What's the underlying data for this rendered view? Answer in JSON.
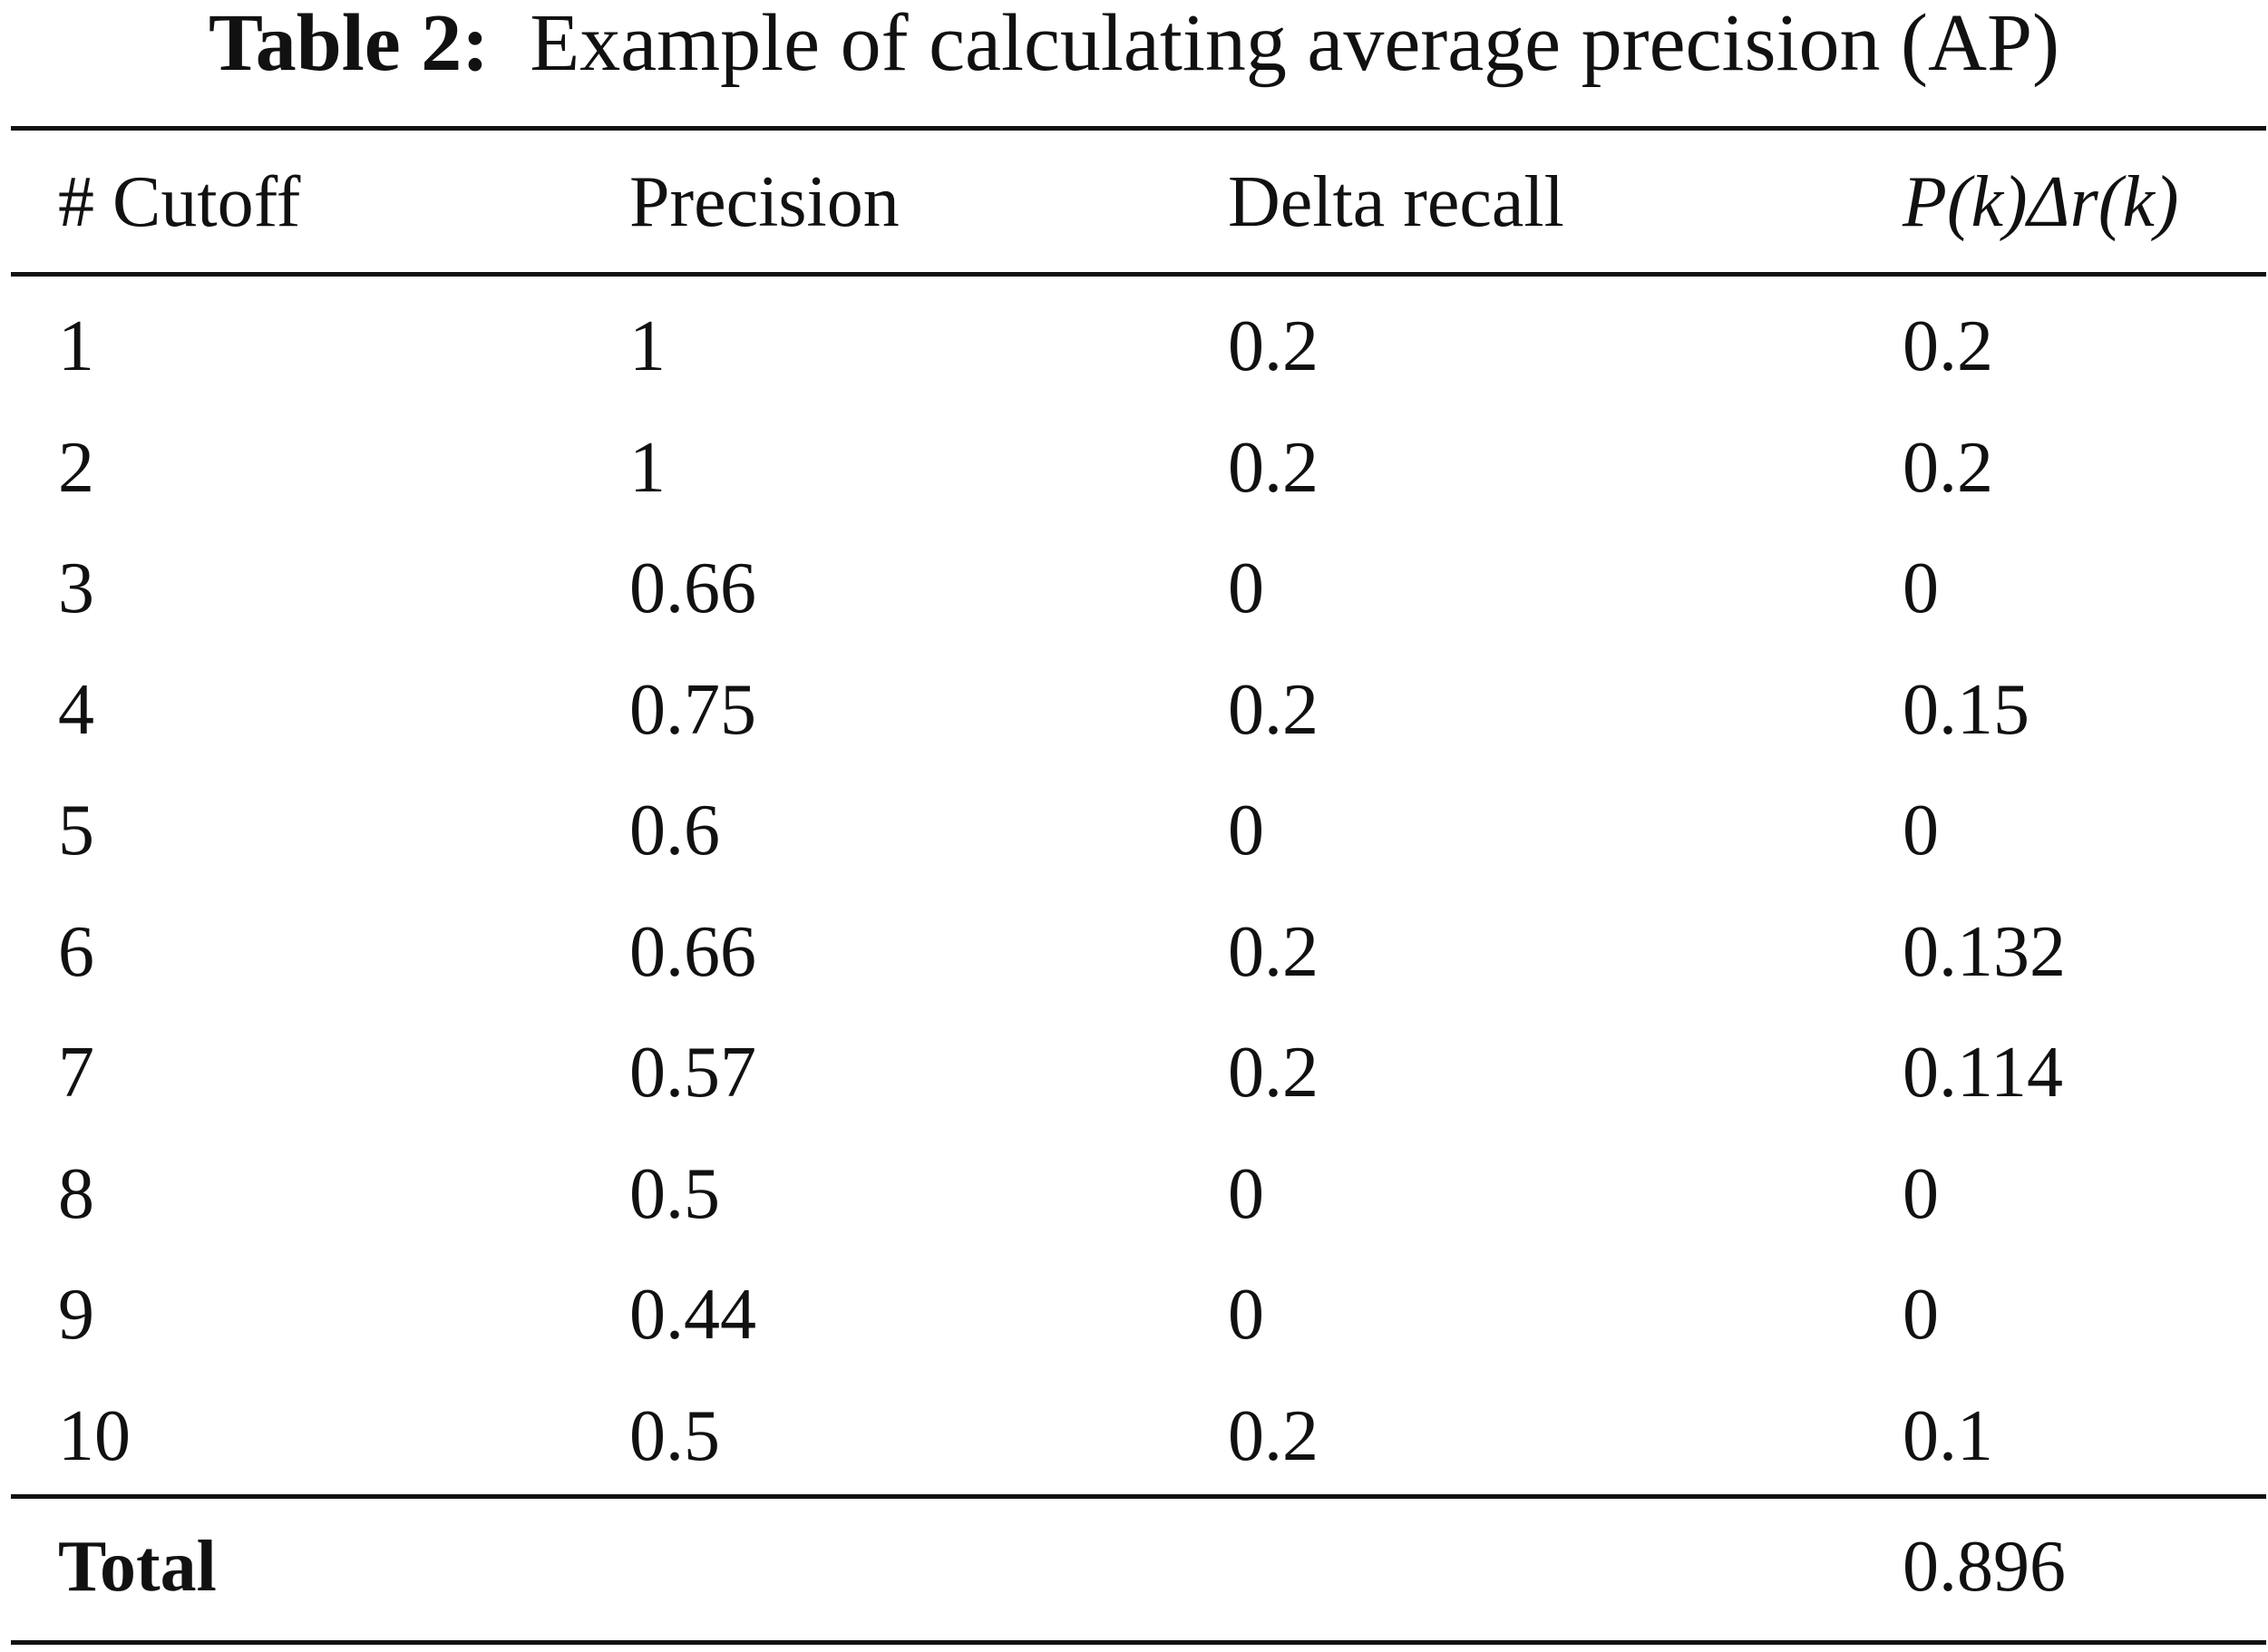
{
  "table": {
    "caption_label": "Table 2:",
    "caption_text": "Example of calculating average precision (AP)",
    "headers": {
      "cutoff": "# Cutoff",
      "precision": "Precision",
      "delta_recall": "Delta recall",
      "product": "P(k)Δr(k)"
    },
    "rows": [
      {
        "cutoff": "1",
        "precision": "1",
        "delta_recall": "0.2",
        "product": "0.2"
      },
      {
        "cutoff": "2",
        "precision": "1",
        "delta_recall": "0.2",
        "product": "0.2"
      },
      {
        "cutoff": "3",
        "precision": "0.66",
        "delta_recall": "0",
        "product": "0"
      },
      {
        "cutoff": "4",
        "precision": "0.75",
        "delta_recall": "0.2",
        "product": "0.15"
      },
      {
        "cutoff": "5",
        "precision": "0.6",
        "delta_recall": "0",
        "product": "0"
      },
      {
        "cutoff": "6",
        "precision": "0.66",
        "delta_recall": "0.2",
        "product": "0.132"
      },
      {
        "cutoff": "7",
        "precision": "0.57",
        "delta_recall": "0.2",
        "product": "0.114"
      },
      {
        "cutoff": "8",
        "precision": "0.5",
        "delta_recall": "0",
        "product": "0"
      },
      {
        "cutoff": "9",
        "precision": "0.44",
        "delta_recall": "0",
        "product": "0"
      },
      {
        "cutoff": "10",
        "precision": "0.5",
        "delta_recall": "0.2",
        "product": "0.1"
      }
    ],
    "total": {
      "label": "Total",
      "value": "0.896"
    }
  }
}
